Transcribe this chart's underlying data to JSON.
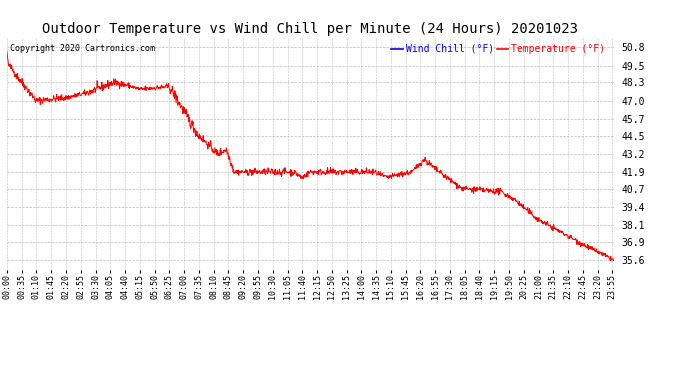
{
  "title": "Outdoor Temperature vs Wind Chill per Minute (24 Hours) 20201023",
  "copyright": "Copyright 2020 Cartronics.com",
  "legend_windchill": "Wind Chill (°F)",
  "legend_temperature": "Temperature (°F)",
  "legend_windchill_color": "blue",
  "legend_temperature_color": "red",
  "line_color": "red",
  "background_color": "white",
  "grid_color": "#bbbbbb",
  "title_fontsize": 10,
  "ytick_labels": [
    50.8,
    49.5,
    48.3,
    47.0,
    45.7,
    44.5,
    43.2,
    41.9,
    40.7,
    39.4,
    38.1,
    36.9,
    35.6
  ],
  "ylim": [
    34.9,
    51.5
  ],
  "xlabel_fontsize": 6,
  "tick_label_fontsize": 7,
  "copyright_fontsize": 6,
  "legend_fontsize": 7
}
